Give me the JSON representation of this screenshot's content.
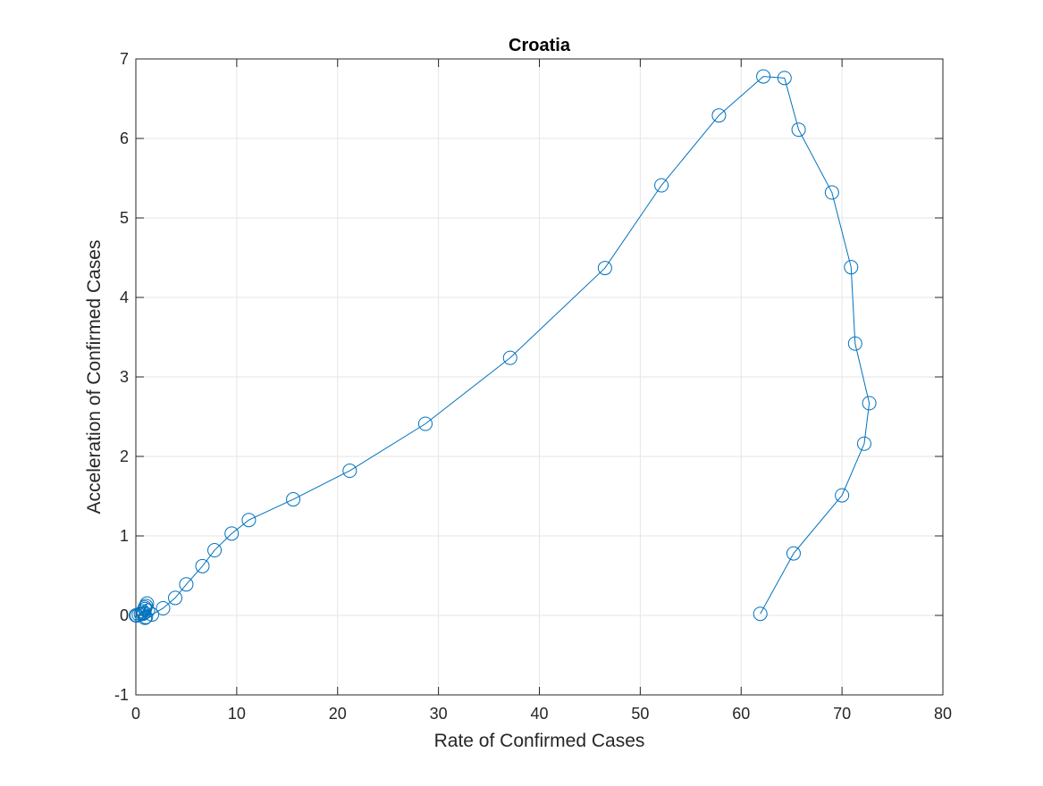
{
  "chart_data": {
    "type": "line",
    "title": "Croatia",
    "xlabel": "Rate of Confirmed Cases",
    "ylabel": "Acceleration of Confirmed Cases",
    "xlim": [
      0,
      80
    ],
    "ylim": [
      -1,
      7
    ],
    "xticks": [
      0,
      10,
      20,
      30,
      40,
      50,
      60,
      70,
      80
    ],
    "yticks": [
      -1,
      0,
      1,
      2,
      3,
      4,
      5,
      6,
      7
    ],
    "grid": true,
    "marker": "circle",
    "series": [
      {
        "color": "#0072BD",
        "x": [
          0,
          0.1,
          0.3,
          0.5,
          0.7,
          0.9,
          1.1,
          1.0,
          0.9,
          0.8,
          1.0,
          1.2,
          0.9,
          0.7,
          1.6,
          2.7,
          3.9,
          5.0,
          6.6,
          7.8,
          9.5,
          11.2,
          15.6,
          21.2,
          28.7,
          37.1,
          46.5,
          52.1,
          57.8,
          62.2,
          64.3,
          65.7,
          69.0,
          70.9,
          71.3,
          72.7,
          72.2,
          70.0,
          65.2,
          61.9
        ],
        "y": [
          0,
          0,
          0.01,
          0.02,
          0.05,
          0.1,
          0.15,
          0.12,
          0.08,
          0.03,
          -0.02,
          0.06,
          -0.03,
          0.02,
          0.01,
          0.09,
          0.22,
          0.39,
          0.62,
          0.82,
          1.03,
          1.2,
          1.46,
          1.82,
          2.41,
          3.24,
          4.37,
          5.41,
          6.29,
          6.78,
          6.76,
          6.11,
          5.32,
          4.38,
          3.42,
          2.67,
          2.16,
          1.51,
          0.78,
          0.02
        ]
      }
    ]
  }
}
